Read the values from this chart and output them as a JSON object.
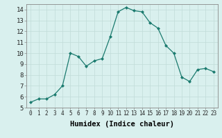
{
  "x": [
    0,
    1,
    2,
    3,
    4,
    5,
    6,
    7,
    8,
    9,
    10,
    11,
    12,
    13,
    14,
    15,
    16,
    17,
    18,
    19,
    20,
    21,
    22,
    23
  ],
  "y": [
    5.5,
    5.8,
    5.8,
    6.2,
    7.0,
    10.0,
    9.7,
    8.8,
    9.3,
    9.5,
    11.5,
    13.8,
    14.2,
    13.9,
    13.8,
    12.8,
    12.3,
    10.7,
    10.0,
    7.8,
    7.4,
    8.5,
    8.6,
    8.3
  ],
  "xlabel": "Humidex (Indice chaleur)",
  "ylim": [
    5,
    14.5
  ],
  "xlim": [
    -0.5,
    23.5
  ],
  "yticks": [
    5,
    6,
    7,
    8,
    9,
    10,
    11,
    12,
    13,
    14
  ],
  "xticks": [
    0,
    1,
    2,
    3,
    4,
    5,
    6,
    7,
    8,
    9,
    10,
    11,
    12,
    13,
    14,
    15,
    16,
    17,
    18,
    19,
    20,
    21,
    22,
    23
  ],
  "line_color": "#1a7a6e",
  "marker": "D",
  "marker_size": 2.0,
  "bg_color": "#d9f0ee",
  "grid_color": "#c0dbd8",
  "xlabel_fontsize": 7.5,
  "tick_fontsize_x": 5.5,
  "tick_fontsize_y": 6.5
}
